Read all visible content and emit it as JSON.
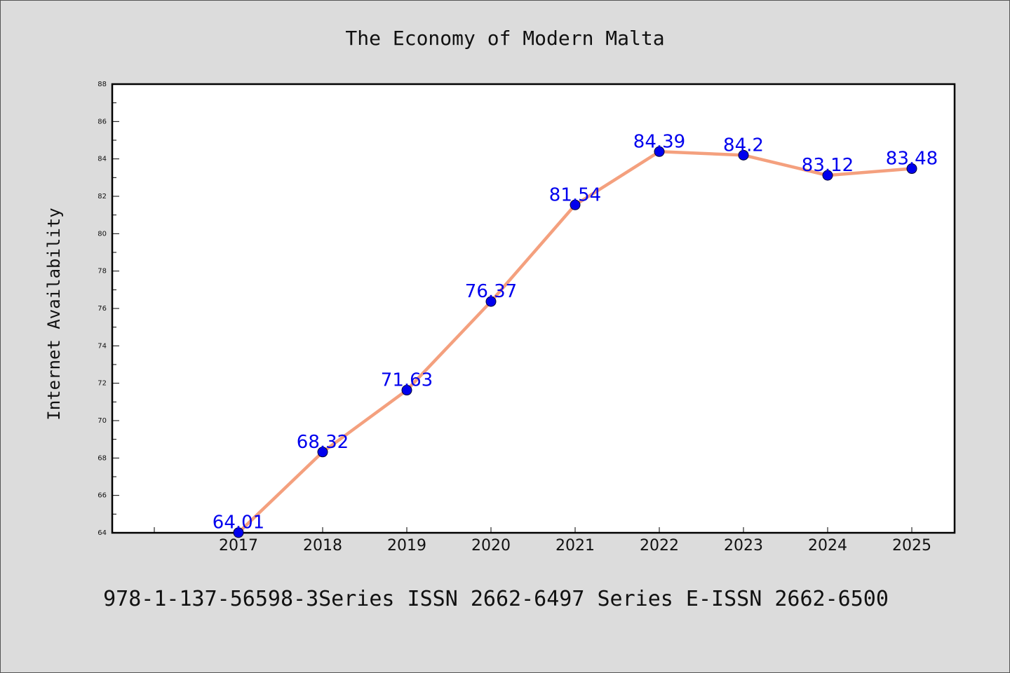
{
  "chart_data": {
    "type": "line",
    "title": "The Economy of Modern Malta",
    "xlabel": "",
    "ylabel": "Internet Availability",
    "x": [
      "2017",
      "2018",
      "2019",
      "2020",
      "2021",
      "2022",
      "2023",
      "2024",
      "2025"
    ],
    "series": [
      {
        "values": [
          64.01,
          68.32,
          71.63,
          76.37,
          81.54,
          84.39,
          84.2,
          83.12,
          83.48
        ],
        "labels": [
          "64.01",
          "68.32",
          "71.63",
          "76.37",
          "81.54",
          "84.39",
          "84.2",
          "83.12",
          "83.48"
        ]
      }
    ],
    "ylim": [
      64,
      88
    ],
    "yticks": [
      "64",
      "66",
      "68",
      "70",
      "72",
      "74",
      "76",
      "78",
      "80",
      "82",
      "84",
      "86",
      "88"
    ],
    "grid": false,
    "legend": "none",
    "colors": {
      "line": "#f4a07e",
      "marker": "#0000ee",
      "label": "#0000ee",
      "background": "#dcdcdc",
      "plot_background": "#ffffff"
    }
  },
  "footer": "978-1-137-56598-3Series ISSN 2662-6497 Series E-ISSN 2662-6500"
}
